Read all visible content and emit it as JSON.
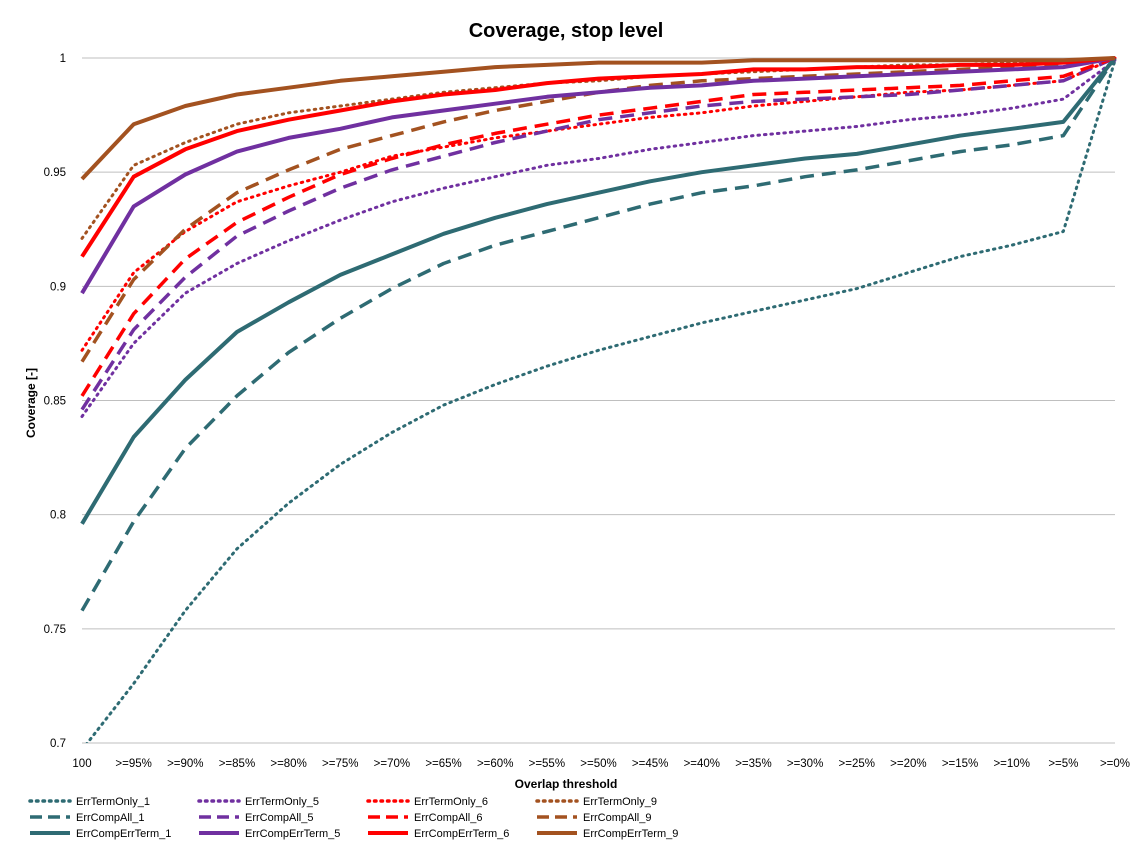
{
  "chart_data": {
    "type": "line",
    "title": "Coverage, stop level",
    "xlabel": "Overlap threshold",
    "ylabel": "Coverage [-]",
    "ylim": [
      0.7,
      1
    ],
    "yticks": [
      "0.7",
      "0.75",
      "0.8",
      "0.85",
      "0.9",
      "0.95",
      "1"
    ],
    "grid": "horizontal",
    "legend_position": "bottom",
    "categories": [
      "100",
      ">=95%",
      ">=90%",
      ">=85%",
      ">=80%",
      ">=75%",
      ">=70%",
      ">=65%",
      ">=60%",
      ">=55%",
      ">=50%",
      ">=45%",
      ">=40%",
      ">=35%",
      ">=30%",
      ">=25%",
      ">=20%",
      ">=15%",
      ">=10%",
      ">=5%",
      ">=0%"
    ],
    "series": [
      {
        "name": "ErrTermOnly_1",
        "color": "#2e6b73",
        "style": "dotted",
        "values": [
          0.697,
          0.726,
          0.758,
          0.785,
          0.805,
          0.822,
          0.836,
          0.848,
          0.857,
          0.865,
          0.872,
          0.878,
          0.884,
          0.889,
          0.894,
          0.899,
          0.906,
          0.913,
          0.918,
          0.924,
          0.999
        ]
      },
      {
        "name": "ErrTermOnly_5",
        "color": "#7030a0",
        "style": "dotted",
        "values": [
          0.843,
          0.875,
          0.897,
          0.91,
          0.92,
          0.929,
          0.937,
          0.943,
          0.948,
          0.953,
          0.956,
          0.96,
          0.963,
          0.966,
          0.968,
          0.97,
          0.973,
          0.975,
          0.978,
          0.982,
          0.999
        ]
      },
      {
        "name": "ErrTermOnly_6",
        "color": "#ff0000",
        "style": "dotted",
        "values": [
          0.872,
          0.906,
          0.924,
          0.937,
          0.944,
          0.95,
          0.957,
          0.961,
          0.965,
          0.968,
          0.971,
          0.974,
          0.976,
          0.979,
          0.981,
          0.983,
          0.985,
          0.986,
          0.988,
          0.99,
          1.0
        ]
      },
      {
        "name": "ErrTermOnly_9",
        "color": "#a35220",
        "style": "dotted",
        "values": [
          0.921,
          0.953,
          0.963,
          0.971,
          0.976,
          0.979,
          0.982,
          0.985,
          0.987,
          0.989,
          0.99,
          0.992,
          0.993,
          0.994,
          0.995,
          0.996,
          0.997,
          0.997,
          0.998,
          0.999,
          1.0
        ]
      },
      {
        "name": "ErrCompAll_1",
        "color": "#2e6b73",
        "style": "dashed",
        "values": [
          0.758,
          0.797,
          0.829,
          0.852,
          0.871,
          0.886,
          0.899,
          0.91,
          0.918,
          0.924,
          0.93,
          0.936,
          0.941,
          0.944,
          0.948,
          0.951,
          0.955,
          0.959,
          0.962,
          0.966,
          1.0
        ]
      },
      {
        "name": "ErrCompAll_5",
        "color": "#7030a0",
        "style": "dashed",
        "values": [
          0.846,
          0.881,
          0.904,
          0.922,
          0.933,
          0.943,
          0.951,
          0.957,
          0.963,
          0.968,
          0.973,
          0.976,
          0.979,
          0.981,
          0.982,
          0.983,
          0.984,
          0.986,
          0.988,
          0.99,
          1.0
        ]
      },
      {
        "name": "ErrCompAll_6",
        "color": "#ff0000",
        "style": "dashed",
        "values": [
          0.852,
          0.888,
          0.912,
          0.928,
          0.939,
          0.949,
          0.956,
          0.962,
          0.967,
          0.971,
          0.975,
          0.978,
          0.981,
          0.984,
          0.985,
          0.986,
          0.987,
          0.988,
          0.99,
          0.992,
          1.0
        ]
      },
      {
        "name": "ErrCompAll_9",
        "color": "#a35220",
        "style": "dashed",
        "values": [
          0.867,
          0.903,
          0.925,
          0.941,
          0.951,
          0.96,
          0.966,
          0.972,
          0.977,
          0.981,
          0.985,
          0.988,
          0.99,
          0.991,
          0.992,
          0.993,
          0.994,
          0.995,
          0.996,
          0.997,
          1.0
        ]
      },
      {
        "name": "ErrCompErrTerm_1",
        "color": "#2e6b73",
        "style": "solid",
        "values": [
          0.796,
          0.834,
          0.859,
          0.88,
          0.893,
          0.905,
          0.914,
          0.923,
          0.93,
          0.936,
          0.941,
          0.946,
          0.95,
          0.953,
          0.956,
          0.958,
          0.962,
          0.966,
          0.969,
          0.972,
          1.0
        ]
      },
      {
        "name": "ErrCompErrTerm_5",
        "color": "#7030a0",
        "style": "solid",
        "values": [
          0.897,
          0.935,
          0.949,
          0.959,
          0.965,
          0.969,
          0.974,
          0.977,
          0.98,
          0.983,
          0.985,
          0.987,
          0.988,
          0.99,
          0.991,
          0.992,
          0.993,
          0.994,
          0.995,
          0.996,
          1.0
        ]
      },
      {
        "name": "ErrCompErrTerm_6",
        "color": "#ff0000",
        "style": "solid",
        "values": [
          0.913,
          0.948,
          0.96,
          0.968,
          0.973,
          0.977,
          0.981,
          0.984,
          0.986,
          0.989,
          0.991,
          0.992,
          0.993,
          0.995,
          0.995,
          0.996,
          0.996,
          0.997,
          0.997,
          0.998,
          1.0
        ]
      },
      {
        "name": "ErrCompErrTerm_9",
        "color": "#a35220",
        "style": "solid",
        "values": [
          0.947,
          0.971,
          0.979,
          0.984,
          0.987,
          0.99,
          0.992,
          0.994,
          0.996,
          0.997,
          0.998,
          0.998,
          0.998,
          0.999,
          0.999,
          0.999,
          0.999,
          0.999,
          0.999,
          0.999,
          1.0
        ]
      }
    ]
  }
}
